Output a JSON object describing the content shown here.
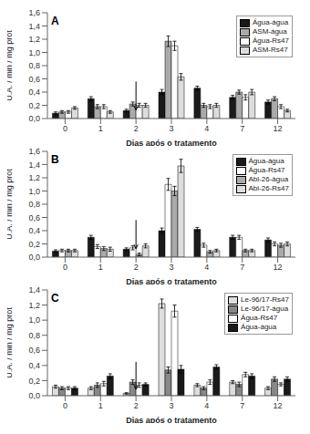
{
  "chart_data": [
    {
      "type": "bar",
      "title": "A",
      "categories": [
        "0",
        "1",
        "2",
        "3",
        "4",
        "7",
        "12"
      ],
      "series": [
        {
          "name": "Água-água",
          "color": "#1a1a1a",
          "values": [
            0.08,
            0.3,
            0.12,
            0.4,
            0.46,
            0.32,
            0.25
          ],
          "errors": [
            0.02,
            0.03,
            0.02,
            0.04,
            0.03,
            0.03,
            0.03
          ]
        },
        {
          "name": "ASM-água",
          "color": "#aaaaaa",
          "values": [
            0.1,
            0.18,
            0.22,
            1.17,
            0.2,
            0.4,
            0.3
          ],
          "errors": [
            0.02,
            0.03,
            0.03,
            0.08,
            0.03,
            0.03,
            0.03
          ]
        },
        {
          "name": "Água-Rs47",
          "color": "#ffffff",
          "values": [
            0.1,
            0.18,
            0.2,
            1.1,
            0.18,
            0.32,
            0.18
          ],
          "errors": [
            0.02,
            0.03,
            0.03,
            0.07,
            0.03,
            0.04,
            0.03
          ]
        },
        {
          "name": "ASM-Rs47",
          "color": "#dddddd",
          "values": [
            0.16,
            0.1,
            0.2,
            0.63,
            0.2,
            0.4,
            0.12
          ],
          "errors": [
            0.02,
            0.02,
            0.03,
            0.05,
            0.03,
            0.04,
            0.02
          ]
        }
      ],
      "xlabel": "Dias após o tratamento",
      "ylabel": "U.A. / min / mg prot",
      "ylim": [
        0,
        1.6
      ],
      "yticks": [
        {
          "value": 0.0,
          "label": "0,0"
        },
        {
          "value": 0.2,
          "label": "0,2"
        },
        {
          "value": 0.4,
          "label": "0,4"
        },
        {
          "value": 0.6,
          "label": "0,6"
        },
        {
          "value": 0.8,
          "label": "0,8"
        },
        {
          "value": 1.0,
          "label": "1,0"
        },
        {
          "value": 1.2,
          "label": "1,2"
        },
        {
          "value": 1.4,
          "label": "1,4"
        },
        {
          "value": 1.6,
          "label": "1,6"
        }
      ],
      "annotations": [
        {
          "type": "arrow",
          "x": "2",
          "y_start": 0.56,
          "y_end": 0.128
        }
      ],
      "legend": "upper right",
      "grid": false
    },
    {
      "type": "bar",
      "title": "B",
      "categories": [
        "0",
        "1",
        "2",
        "3",
        "4",
        "7",
        "12"
      ],
      "series": [
        {
          "name": "Água-água",
          "color": "#1a1a1a",
          "values": [
            0.09,
            0.3,
            0.12,
            0.4,
            0.42,
            0.3,
            0.26
          ],
          "errors": [
            0.02,
            0.03,
            0.02,
            0.04,
            0.03,
            0.03,
            0.03
          ]
        },
        {
          "name": "Água-Rs47",
          "color": "#ffffff",
          "values": [
            0.1,
            0.16,
            0.14,
            1.1,
            0.18,
            0.3,
            0.2
          ],
          "errors": [
            0.02,
            0.03,
            0.03,
            0.09,
            0.03,
            0.03,
            0.03
          ]
        },
        {
          "name": "Abl-26-água",
          "color": "#aaaaaa",
          "values": [
            0.1,
            0.13,
            0.04,
            1.0,
            0.08,
            0.1,
            0.18
          ],
          "errors": [
            0.02,
            0.03,
            0.02,
            0.07,
            0.02,
            0.02,
            0.03
          ]
        },
        {
          "name": "Abl-26-Rs47",
          "color": "#dddddd",
          "values": [
            0.1,
            0.12,
            0.17,
            1.38,
            0.1,
            0.1,
            0.2
          ],
          "errors": [
            0.02,
            0.03,
            0.03,
            0.1,
            0.02,
            0.02,
            0.03
          ]
        }
      ],
      "xlabel": "Dias após o tratamento",
      "ylabel": "U.A. / min / mg prot",
      "ylim": [
        0,
        1.6
      ],
      "yticks": [
        {
          "value": 0.0,
          "label": "0,0"
        },
        {
          "value": 0.2,
          "label": "0,2"
        },
        {
          "value": 0.4,
          "label": "0,4"
        },
        {
          "value": 0.6,
          "label": "0,6"
        },
        {
          "value": 0.8,
          "label": "0,8"
        },
        {
          "value": 1.0,
          "label": "1,0"
        },
        {
          "value": 1.2,
          "label": "1,2"
        },
        {
          "value": 1.4,
          "label": "1,4"
        },
        {
          "value": 1.6,
          "label": "1,6"
        }
      ],
      "annotations": [
        {
          "type": "arrow",
          "x": "2",
          "y_start": 0.56,
          "y_end": 0.128
        }
      ],
      "legend": "upper right",
      "grid": false
    },
    {
      "type": "bar",
      "title": "C",
      "categories": [
        "0",
        "1",
        "2",
        "3",
        "4",
        "7",
        "12"
      ],
      "series": [
        {
          "name": "Le-96/17-Rs47",
          "color": "#dddddd",
          "values": [
            0.12,
            0.1,
            0.03,
            1.22,
            0.14,
            0.18,
            0.1
          ],
          "errors": [
            0.02,
            0.02,
            0.01,
            0.06,
            0.02,
            0.02,
            0.02
          ]
        },
        {
          "name": "Le-96/17-água",
          "color": "#888888",
          "values": [
            0.1,
            0.14,
            0.18,
            0.34,
            0.1,
            0.15,
            0.22
          ],
          "errors": [
            0.02,
            0.03,
            0.03,
            0.04,
            0.02,
            0.03,
            0.03
          ]
        },
        {
          "name": "Água-Rs47",
          "color": "#ffffff",
          "values": [
            0.1,
            0.16,
            0.14,
            1.12,
            0.18,
            0.28,
            0.15
          ],
          "errors": [
            0.02,
            0.03,
            0.03,
            0.08,
            0.03,
            0.03,
            0.02
          ]
        },
        {
          "name": "Água-água",
          "color": "#1a1a1a",
          "values": [
            0.1,
            0.26,
            0.15,
            0.35,
            0.38,
            0.26,
            0.22
          ],
          "errors": [
            0.02,
            0.03,
            0.02,
            0.05,
            0.03,
            0.03,
            0.03
          ]
        }
      ],
      "xlabel": "Dias após o tratamento",
      "ylabel": "U.A. / min / mg prot",
      "ylim": [
        0,
        1.4
      ],
      "yticks": [
        {
          "value": 0.0,
          "label": "0,0"
        },
        {
          "value": 0.2,
          "label": "0,2"
        },
        {
          "value": 0.4,
          "label": "0,4"
        },
        {
          "value": 0.6,
          "label": "0,6"
        },
        {
          "value": 0.8,
          "label": "0,8"
        },
        {
          "value": 1.0,
          "label": "1,0"
        },
        {
          "value": 1.2,
          "label": "1,2"
        },
        {
          "value": 1.4,
          "label": "1,4"
        }
      ],
      "annotations": [
        {
          "type": "arrow",
          "x": "2",
          "y_start": 0.448,
          "y_end": 0.084
        }
      ],
      "legend": "upper right",
      "grid": false
    }
  ]
}
